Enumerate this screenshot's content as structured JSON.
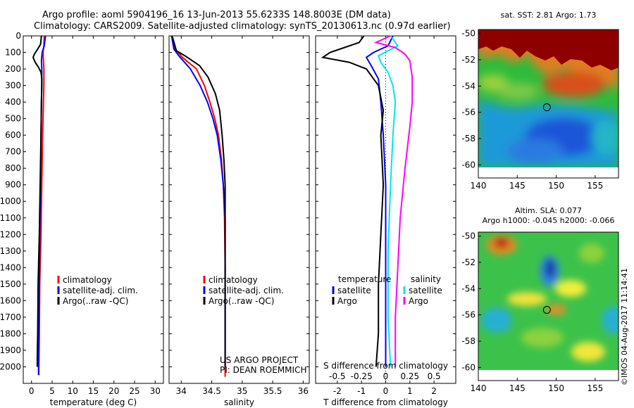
{
  "title": {
    "line1": "Argo profile: aoml 5904196_16 13-Jun-2013 55.6233S 148.8003E (DM data)",
    "line2": "Climatology: CARS2009. Satellite-adjusted climatology: synTS_20130613.nc (0.97d earlier)"
  },
  "colors": {
    "climatology": "#ff0000",
    "satellite": "#0000ff",
    "argo": "#000000",
    "s_satellite": "#00e5ee",
    "s_argo": "#ff00ff"
  },
  "chart_data": [
    {
      "type": "line",
      "name": "temperature",
      "xlabel": "temperature (deg C)",
      "ylabel": "",
      "xlim": [
        -2,
        32
      ],
      "ylim": [
        0,
        2100
      ],
      "y_reversed": true,
      "xticks": [
        "0",
        "5",
        "10",
        "15",
        "20",
        "25",
        "30"
      ],
      "xtick_values": [
        0,
        5,
        10,
        15,
        20,
        25,
        30
      ],
      "yticks": [
        "0",
        "100",
        "200",
        "300",
        "400",
        "500",
        "600",
        "700",
        "800",
        "900",
        "1000",
        "1100",
        "1200",
        "1300",
        "1400",
        "1500",
        "1600",
        "1700",
        "1800",
        "1900",
        "2000"
      ],
      "ytick_values": [
        0,
        100,
        200,
        300,
        400,
        500,
        600,
        700,
        800,
        900,
        1000,
        1100,
        1200,
        1300,
        1400,
        1500,
        1600,
        1700,
        1800,
        1900,
        2000
      ],
      "legend": [
        "climatology",
        "satellite-adj. clim.",
        "Argo(..raw -QC)"
      ],
      "legend_position": "lower-right",
      "series": [
        {
          "name": "climatology",
          "color": "#ff0000",
          "points": [
            [
              3.1,
              0
            ],
            [
              3.0,
              60
            ],
            [
              2.8,
              100
            ],
            [
              2.9,
              150
            ],
            [
              3.0,
              200
            ],
            [
              3.0,
              300
            ],
            [
              2.9,
              400
            ],
            [
              2.7,
              600
            ],
            [
              2.5,
              900
            ],
            [
              2.3,
              1200
            ],
            [
              2.0,
              1500
            ],
            [
              1.9,
              1800
            ],
            [
              1.8,
              2000
            ],
            [
              1.8,
              2050
            ]
          ]
        },
        {
          "name": "satellite-adj. clim.",
          "color": "#0000ff",
          "points": [
            [
              3.4,
              0
            ],
            [
              3.1,
              60
            ],
            [
              2.6,
              100
            ],
            [
              2.4,
              150
            ],
            [
              2.5,
              200
            ],
            [
              2.5,
              300
            ],
            [
              2.4,
              400
            ],
            [
              2.3,
              600
            ],
            [
              2.2,
              900
            ],
            [
              2.0,
              1200
            ],
            [
              1.9,
              1500
            ],
            [
              1.8,
              1800
            ],
            [
              1.7,
              2000
            ],
            [
              1.7,
              2050
            ]
          ]
        },
        {
          "name": "Argo(..raw -QC)",
          "color": "#000000",
          "points": [
            [
              2.4,
              0
            ],
            [
              2.2,
              50
            ],
            [
              1.5,
              80
            ],
            [
              0.7,
              110
            ],
            [
              0.4,
              130
            ],
            [
              0.9,
              160
            ],
            [
              1.7,
              190
            ],
            [
              2.3,
              220
            ],
            [
              2.5,
              260
            ],
            [
              2.5,
              300
            ],
            [
              2.4,
              400
            ],
            [
              2.3,
              600
            ],
            [
              2.1,
              900
            ],
            [
              1.9,
              1200
            ],
            [
              1.6,
              1500
            ],
            [
              1.5,
              1800
            ],
            [
              1.4,
              1950
            ],
            [
              1.4,
              2000
            ]
          ]
        }
      ]
    },
    {
      "type": "line",
      "name": "salinity",
      "xlabel": "salinity",
      "ylabel": "",
      "xlim": [
        33.8,
        36.1
      ],
      "ylim": [
        0,
        2100
      ],
      "y_reversed": true,
      "xticks": [
        "34",
        "34.5",
        "35",
        "35.5",
        "36"
      ],
      "xtick_values": [
        34,
        34.5,
        35,
        35.5,
        36
      ],
      "legend": [
        "climatology",
        "satellite-adj. clim.",
        "Argo(..raw -QC)"
      ],
      "legend_position": "lower-right",
      "annotation": [
        "US ARGO PROJECT",
        "PI: DEAN ROEMMICH"
      ],
      "series": [
        {
          "name": "climatology",
          "color": "#ff0000",
          "points": [
            [
              33.84,
              0
            ],
            [
              33.9,
              80
            ],
            [
              34.02,
              130
            ],
            [
              34.25,
              200
            ],
            [
              34.38,
              300
            ],
            [
              34.47,
              400
            ],
            [
              34.55,
              500
            ],
            [
              34.61,
              600
            ],
            [
              34.66,
              750
            ],
            [
              34.69,
              900
            ],
            [
              34.71,
              1100
            ],
            [
              34.72,
              1400
            ],
            [
              34.72,
              1800
            ],
            [
              34.72,
              2060
            ]
          ]
        },
        {
          "name": "satellite-adj. clim.",
          "color": "#0000ff",
          "points": [
            [
              33.84,
              0
            ],
            [
              33.88,
              80
            ],
            [
              33.96,
              120
            ],
            [
              34.15,
              200
            ],
            [
              34.31,
              300
            ],
            [
              34.43,
              400
            ],
            [
              34.52,
              500
            ],
            [
              34.59,
              600
            ],
            [
              34.65,
              750
            ],
            [
              34.69,
              900
            ],
            [
              34.72,
              1100
            ],
            [
              34.72,
              1400
            ],
            [
              34.72,
              1800
            ],
            [
              34.72,
              2000
            ]
          ]
        },
        {
          "name": "Argo(..raw -QC)",
          "color": "#000000",
          "points": [
            [
              33.85,
              0
            ],
            [
              33.92,
              90
            ],
            [
              34.06,
              120
            ],
            [
              34.3,
              180
            ],
            [
              34.44,
              250
            ],
            [
              34.56,
              350
            ],
            [
              34.63,
              450
            ],
            [
              34.67,
              600
            ],
            [
              34.7,
              750
            ],
            [
              34.72,
              900
            ],
            [
              34.72,
              1100
            ],
            [
              34.72,
              1400
            ],
            [
              34.72,
              1800
            ],
            [
              34.72,
              2000
            ]
          ]
        }
      ]
    },
    {
      "type": "line",
      "name": "differences",
      "xlabel": "T difference from climatology",
      "x2label": "S difference from climatology",
      "ylabel": "",
      "xlim": [
        -2.9,
        2.9
      ],
      "ylim": [
        0,
        2100
      ],
      "y_reversed": true,
      "xticks": [
        "-2",
        "-1",
        "0",
        "1",
        "2"
      ],
      "xtick_values": [
        -2,
        -1,
        0,
        1,
        2
      ],
      "x2ticks": [
        "-0.5",
        "-0.25",
        "0",
        "0.25",
        "0.5"
      ],
      "x2tick_positions": [
        -2,
        -1,
        0,
        1,
        2
      ],
      "legend_titles": [
        "temperature",
        "salinity"
      ],
      "legend": [
        [
          "satellite",
          "Argo"
        ],
        [
          "satellite",
          "Argo"
        ]
      ],
      "legend_position": "lower-center",
      "series": [
        {
          "name": "T satellite",
          "color": "#0000ff",
          "points": [
            [
              0.3,
              0
            ],
            [
              0.1,
              60
            ],
            [
              -0.5,
              100
            ],
            [
              -0.8,
              130
            ],
            [
              -0.6,
              180
            ],
            [
              -0.3,
              260
            ],
            [
              -0.2,
              400
            ],
            [
              -0.1,
              600
            ],
            [
              0.0,
              900
            ],
            [
              0.0,
              1300
            ],
            [
              0.0,
              1700
            ],
            [
              0.0,
              2000
            ]
          ]
        },
        {
          "name": "T Argo",
          "color": "#000000",
          "points": [
            [
              -0.9,
              0
            ],
            [
              -1.1,
              40
            ],
            [
              -1.7,
              70
            ],
            [
              -2.3,
              100
            ],
            [
              -2.6,
              130
            ],
            [
              -1.5,
              160
            ],
            [
              -0.8,
              200
            ],
            [
              -0.3,
              300
            ],
            [
              -0.1,
              450
            ],
            [
              -0.2,
              600
            ],
            [
              -0.1,
              900
            ],
            [
              -0.2,
              1200
            ],
            [
              -0.3,
              1500
            ],
            [
              -0.3,
              1800
            ],
            [
              -0.4,
              2000
            ]
          ]
        },
        {
          "name": "S satellite",
          "color": "#00e5ee",
          "points": [
            [
              0.2,
              0
            ],
            [
              0.5,
              60
            ],
            [
              0.1,
              90
            ],
            [
              -0.3,
              120
            ],
            [
              -0.2,
              160
            ],
            [
              0.1,
              220
            ],
            [
              0.3,
              300
            ],
            [
              0.4,
              400
            ],
            [
              0.3,
              600
            ],
            [
              0.2,
              900
            ],
            [
              0.1,
              1300
            ],
            [
              0.1,
              1700
            ],
            [
              0.2,
              2000
            ]
          ]
        },
        {
          "name": "S Argo",
          "color": "#ff00ff",
          "points": [
            [
              0.2,
              0
            ],
            [
              -0.4,
              40
            ],
            [
              0.4,
              70
            ],
            [
              0.8,
              110
            ],
            [
              1.0,
              150
            ],
            [
              1.1,
              250
            ],
            [
              1.1,
              400
            ],
            [
              1.0,
              550
            ],
            [
              0.8,
              800
            ],
            [
              0.6,
              1100
            ],
            [
              0.5,
              1400
            ],
            [
              0.4,
              1700
            ],
            [
              0.4,
              2000
            ]
          ]
        }
      ]
    },
    {
      "type": "heatmap",
      "name": "sat-sst-map",
      "title": "sat. SST: 2.81  Argo: 1.73",
      "xlim": [
        140,
        158
      ],
      "ylim": [
        -61,
        -49.7
      ],
      "xticks": [
        "140",
        "145",
        "150",
        "155"
      ],
      "xtick_values": [
        140,
        145,
        150,
        155
      ],
      "yticks": [
        "-50",
        "-52",
        "-54",
        "-56",
        "-58",
        "-60"
      ],
      "ytick_values": [
        -50,
        -52,
        -54,
        -56,
        -58,
        -60
      ],
      "marker": {
        "lon": 148.8,
        "lat": -55.62
      }
    },
    {
      "type": "heatmap",
      "name": "sla-map",
      "title": "Altim. SLA: 0.077",
      "subtitle": "Argo h1000: -0.045 h2000: -0.066",
      "xlim": [
        140,
        158
      ],
      "ylim": [
        -61,
        -49.7
      ],
      "xticks": [
        "140",
        "145",
        "150",
        "155"
      ],
      "xtick_values": [
        140,
        145,
        150,
        155
      ],
      "yticks": [
        "-50",
        "-52",
        "-54",
        "-56",
        "-58",
        "-60"
      ],
      "ytick_values": [
        -50,
        -52,
        -54,
        -56,
        -58,
        -60
      ],
      "marker": {
        "lon": 148.8,
        "lat": -55.62
      }
    }
  ],
  "watermark": "©IMOS 04-Aug-2017 11:14:41"
}
